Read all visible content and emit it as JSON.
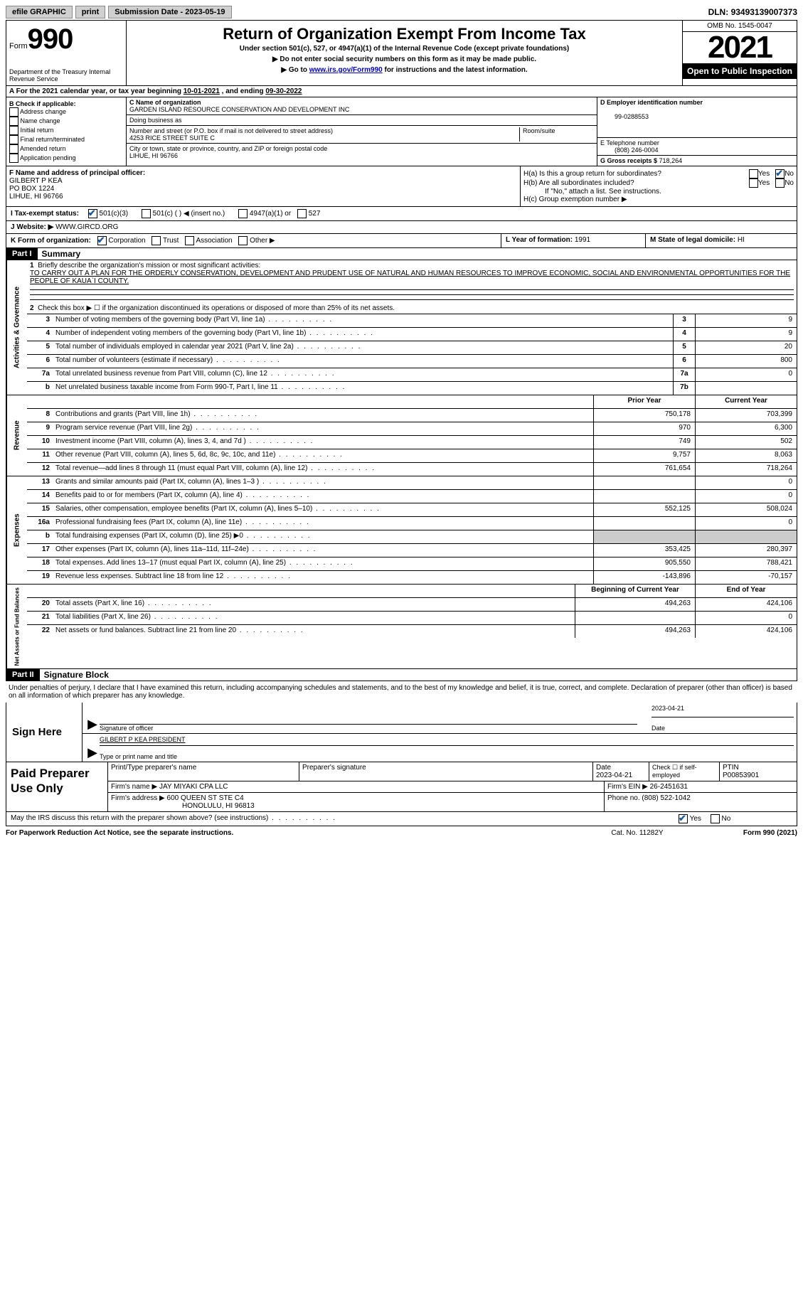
{
  "topbar": {
    "efile": "efile GRAPHIC",
    "print": "print",
    "submission_label": "Submission Date - ",
    "submission_date": "2023-05-19",
    "dln_label": "DLN: ",
    "dln": "93493139007373"
  },
  "header": {
    "form_prefix": "Form",
    "form_number": "990",
    "dept": "Department of the Treasury Internal Revenue Service",
    "title": "Return of Organization Exempt From Income Tax",
    "sub1": "Under section 501(c), 527, or 4947(a)(1) of the Internal Revenue Code (except private foundations)",
    "sub2": "▶ Do not enter social security numbers on this form as it may be made public.",
    "sub3_pre": "▶ Go to ",
    "sub3_link": "www.irs.gov/Form990",
    "sub3_post": " for instructions and the latest information.",
    "omb": "OMB No. 1545-0047",
    "year": "2021",
    "open": "Open to Public Inspection"
  },
  "rowA": {
    "text": "A For the 2021 calendar year, or tax year beginning ",
    "begin": "10-01-2021",
    "mid": " , and ending ",
    "end": "09-30-2022"
  },
  "colB": {
    "label": "B Check if applicable:",
    "opts": [
      "Address change",
      "Name change",
      "Initial return",
      "Final return/terminated",
      "Amended return",
      "Application pending"
    ]
  },
  "colC": {
    "name_label": "C Name of organization",
    "name": "GARDEN ISLAND RESOURCE CONSERVATION AND DEVELOPMENT INC",
    "dba_label": "Doing business as",
    "street_label": "Number and street (or P.O. box if mail is not delivered to street address)",
    "room_label": "Room/suite",
    "street": "4253 RICE STREET SUITE C",
    "city_label": "City or town, state or province, country, and ZIP or foreign postal code",
    "city": "LIHUE, HI  96766"
  },
  "colD": {
    "ein_label": "D Employer identification number",
    "ein": "99-0288553",
    "phone_label": "E Telephone number",
    "phone": "(808) 246-0004",
    "gross_label": "G Gross receipts $ ",
    "gross": "718,264"
  },
  "rowF": {
    "label": "F  Name and address of principal officer:",
    "name": "GILBERT P KEA",
    "addr1": "PO BOX 1224",
    "addr2": "LIHUE, HI   96766"
  },
  "rowH": {
    "ha": "H(a)  Is this a group return for subordinates?",
    "hb": "H(b)  Are all subordinates included?",
    "hb_note": "If \"No,\" attach a list. See instructions.",
    "hc": "H(c)  Group exemption number ▶"
  },
  "rowI": {
    "label": "I   Tax-exempt status:",
    "opt1": "501(c)(3)",
    "opt2": "501(c) (  ) ◀ (insert no.)",
    "opt3": "4947(a)(1) or",
    "opt4": "527"
  },
  "rowJ": {
    "label": "J   Website: ▶  ",
    "url": "WWW.GIRCD.ORG"
  },
  "rowK": {
    "label": "K Form of organization:",
    "corp": "Corporation",
    "trust": "Trust",
    "assoc": "Association",
    "other": "Other ▶",
    "l_label": "L Year of formation: ",
    "l_val": "1991",
    "m_label": "M State of legal domicile: ",
    "m_val": "HI"
  },
  "part1": {
    "header": "Part I",
    "title": "Summary",
    "line1": "Briefly describe the organization's mission or most significant activities:",
    "mission": "TO CARRY OUT A PLAN FOR THE ORDERLY CONSERVATION, DEVELOPMENT AND PRUDENT USE OF NATURAL AND HUMAN RESOURCES TO IMPROVE ECONOMIC, SOCIAL AND ENVIRONMENTAL OPPORTUNITIES FOR THE PEOPLE OF KAUA`I COUNTY.",
    "line2": "Check this box ▶ ☐ if the organization discontinued its operations or disposed of more than 25% of its net assets.",
    "sideA": "Activities & Governance",
    "sideR": "Revenue",
    "sideE": "Expenses",
    "sideN": "Net Assets or Fund Balances",
    "rows_ag": [
      {
        "n": "3",
        "d": "Number of voting members of the governing body (Part VI, line 1a)",
        "box": "3",
        "v": "9"
      },
      {
        "n": "4",
        "d": "Number of independent voting members of the governing body (Part VI, line 1b)",
        "box": "4",
        "v": "9"
      },
      {
        "n": "5",
        "d": "Total number of individuals employed in calendar year 2021 (Part V, line 2a)",
        "box": "5",
        "v": "20"
      },
      {
        "n": "6",
        "d": "Total number of volunteers (estimate if necessary)",
        "box": "6",
        "v": "800"
      },
      {
        "n": "7a",
        "d": "Total unrelated business revenue from Part VIII, column (C), line 12",
        "box": "7a",
        "v": "0"
      },
      {
        "n": "b",
        "d": "Net unrelated business taxable income from Form 990-T, Part I, line 11",
        "box": "7b",
        "v": ""
      }
    ],
    "py_label": "Prior Year",
    "cy_label": "Current Year",
    "rows_rev": [
      {
        "n": "8",
        "d": "Contributions and grants (Part VIII, line 1h)",
        "py": "750,178",
        "cy": "703,399"
      },
      {
        "n": "9",
        "d": "Program service revenue (Part VIII, line 2g)",
        "py": "970",
        "cy": "6,300"
      },
      {
        "n": "10",
        "d": "Investment income (Part VIII, column (A), lines 3, 4, and 7d )",
        "py": "749",
        "cy": "502"
      },
      {
        "n": "11",
        "d": "Other revenue (Part VIII, column (A), lines 5, 6d, 8c, 9c, 10c, and 11e)",
        "py": "9,757",
        "cy": "8,063"
      },
      {
        "n": "12",
        "d": "Total revenue—add lines 8 through 11 (must equal Part VIII, column (A), line 12)",
        "py": "761,654",
        "cy": "718,264"
      }
    ],
    "rows_exp": [
      {
        "n": "13",
        "d": "Grants and similar amounts paid (Part IX, column (A), lines 1–3 )",
        "py": "",
        "cy": "0"
      },
      {
        "n": "14",
        "d": "Benefits paid to or for members (Part IX, column (A), line 4)",
        "py": "",
        "cy": "0"
      },
      {
        "n": "15",
        "d": "Salaries, other compensation, employee benefits (Part IX, column (A), lines 5–10)",
        "py": "552,125",
        "cy": "508,024"
      },
      {
        "n": "16a",
        "d": "Professional fundraising fees (Part IX, column (A), line 11e)",
        "py": "",
        "cy": "0"
      },
      {
        "n": "b",
        "d": "Total fundraising expenses (Part IX, column (D), line 25) ▶0",
        "py": "gray",
        "cy": "gray"
      },
      {
        "n": "17",
        "d": "Other expenses (Part IX, column (A), lines 11a–11d, 11f–24e)",
        "py": "353,425",
        "cy": "280,397"
      },
      {
        "n": "18",
        "d": "Total expenses. Add lines 13–17 (must equal Part IX, column (A), line 25)",
        "py": "905,550",
        "cy": "788,421"
      },
      {
        "n": "19",
        "d": "Revenue less expenses. Subtract line 18 from line 12",
        "py": "-143,896",
        "cy": "-70,157"
      }
    ],
    "bcy_label": "Beginning of Current Year",
    "eoy_label": "End of Year",
    "rows_na": [
      {
        "n": "20",
        "d": "Total assets (Part X, line 16)",
        "py": "494,263",
        "cy": "424,106"
      },
      {
        "n": "21",
        "d": "Total liabilities (Part X, line 26)",
        "py": "",
        "cy": "0"
      },
      {
        "n": "22",
        "d": "Net assets or fund balances. Subtract line 21 from line 20",
        "py": "494,263",
        "cy": "424,106"
      }
    ]
  },
  "part2": {
    "header": "Part II",
    "title": "Signature Block",
    "intro": "Under penalties of perjury, I declare that I have examined this return, including accompanying schedules and statements, and to the best of my knowledge and belief, it is true, correct, and complete. Declaration of preparer (other than officer) is based on all information of which preparer has any knowledge.",
    "sign_here": "Sign Here",
    "sig_officer": "Signature of officer",
    "sig_date": "2023-04-21",
    "date_label": "Date",
    "officer_name": "GILBERT P KEA  PRESIDENT",
    "type_label": "Type or print name and title",
    "paid_prep": "Paid Preparer Use Only",
    "prep_name_label": "Print/Type preparer's name",
    "prep_sig_label": "Preparer's signature",
    "prep_date_label": "Date",
    "prep_date": "2023-04-21",
    "check_if": "Check ☐ if self-employed",
    "ptin_label": "PTIN",
    "ptin": "P00853901",
    "firm_name_label": "Firm's name    ▶ ",
    "firm_name": "JAY MIYAKI CPA LLC",
    "firm_ein_label": "Firm's EIN ▶ ",
    "firm_ein": "26-2451631",
    "firm_addr_label": "Firm's address ▶ ",
    "firm_addr1": "600 QUEEN ST STE C4",
    "firm_addr2": "HONOLULU, HI  96813",
    "firm_phone_label": "Phone no. ",
    "firm_phone": "(808) 522-1042",
    "may_irs": "May the IRS discuss this return with the preparer shown above? (see instructions)",
    "yes": "Yes",
    "no": "No"
  },
  "footer": {
    "pra": "For Paperwork Reduction Act Notice, see the separate instructions.",
    "cat": "Cat. No. 11282Y",
    "form": "Form 990 (2021)"
  }
}
